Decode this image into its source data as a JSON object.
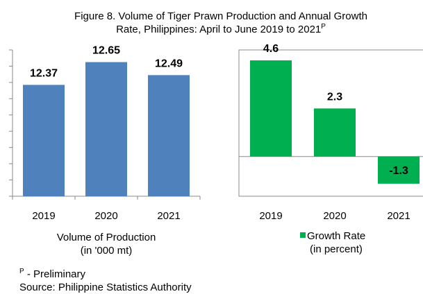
{
  "title": "Figure 8. Volume of Tiger Prawn Production and  Annual Growth Rate, Philippines: April to June 2019 to 2021",
  "title_mark": "P",
  "chart_data": [
    {
      "type": "bar",
      "categories": [
        "2019",
        "2020",
        "2021"
      ],
      "values": [
        12.37,
        12.65,
        12.49
      ],
      "color": "#4f81bd",
      "ylim": [
        11.0,
        12.8
      ],
      "yticks": [
        11.0,
        11.2,
        11.4,
        11.6,
        11.8,
        12.0,
        12.2,
        12.4,
        12.6,
        12.8
      ],
      "xlabel": "Volume of Production\n(in '000 mt)"
    },
    {
      "type": "bar",
      "categories": [
        "2019",
        "2020",
        "2021"
      ],
      "values": [
        4.6,
        2.3,
        -1.3
      ],
      "color": "#00b050",
      "ylim": [
        -1.9,
        5.1
      ],
      "legend": "Growth Rate\n(in percent)"
    }
  ],
  "footnote": {
    "mark": "P",
    "text": " - Preliminary"
  },
  "source": "Source: Philippine Statistics Authority"
}
